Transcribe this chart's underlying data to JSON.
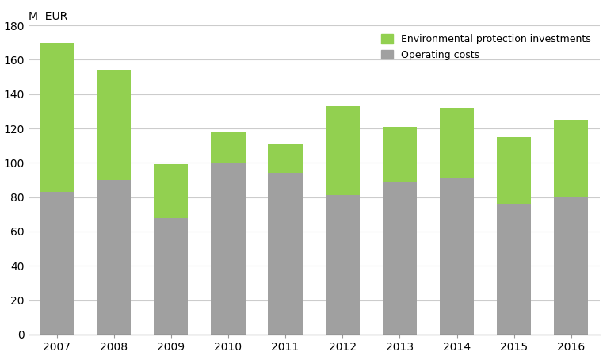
{
  "years": [
    "2007",
    "2008",
    "2009",
    "2010",
    "2011",
    "2012",
    "2013",
    "2014",
    "2015",
    "2016"
  ],
  "operating_costs": [
    83,
    90,
    68,
    100,
    94,
    81,
    89,
    91,
    76,
    80
  ],
  "env_investments": [
    87,
    64,
    31,
    18,
    17,
    52,
    32,
    41,
    39,
    45
  ],
  "operating_color": "#a0a0a0",
  "env_color": "#92d050",
  "ylabel": "M  EUR",
  "ylim": [
    0,
    180
  ],
  "yticks": [
    0,
    20,
    40,
    60,
    80,
    100,
    120,
    140,
    160,
    180
  ],
  "legend_env": "Environmental protection investments",
  "legend_op": "Operating costs",
  "background_color": "#ffffff",
  "grid_color": "#cccccc"
}
